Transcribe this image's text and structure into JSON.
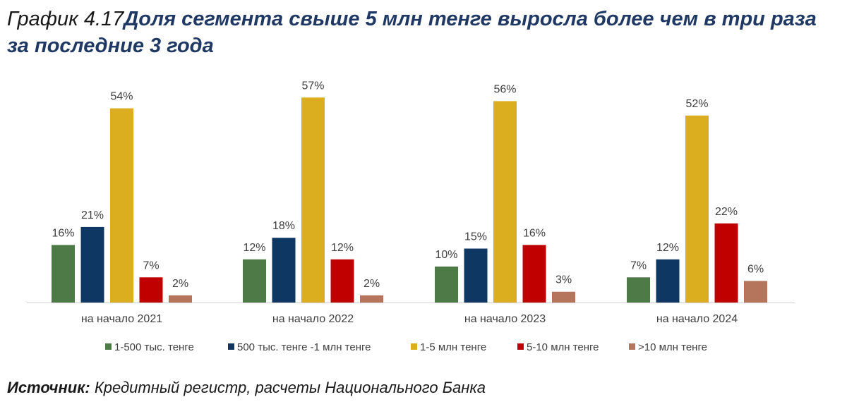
{
  "header": {
    "number": "График 4.17",
    "title": "Доля сегмента свыше 5 млн тенге выросла более чем в три раза за последние 3 года"
  },
  "chart_data": {
    "type": "bar",
    "categories": [
      "на начало 2021",
      "на начало 2022",
      "на начало 2023",
      "на начало 2024"
    ],
    "series": [
      {
        "name": "1-500 тыс. тенге",
        "color": "#4e7a47",
        "values": [
          16,
          12,
          10,
          7
        ],
        "labels": [
          "16%",
          "12%",
          "10%",
          "7%"
        ]
      },
      {
        "name": "500 тыс. тенге -1 млн тенге",
        "color": "#0f3763",
        "values": [
          21,
          18,
          15,
          12
        ],
        "labels": [
          "21%",
          "18%",
          "15%",
          "12%"
        ]
      },
      {
        "name": "1-5 млн тенге",
        "color": "#dbae1f",
        "values": [
          54,
          57,
          56,
          52
        ],
        "labels": [
          "54%",
          "57%",
          "56%",
          "52%"
        ]
      },
      {
        "name": "5-10 млн тенге",
        "color": "#c00000",
        "values": [
          7,
          12,
          16,
          22
        ],
        "labels": [
          "7%",
          "12%",
          "16%",
          "22%"
        ]
      },
      {
        "name": ">10 млн тенге",
        "color": "#b5745c",
        "values": [
          2,
          2,
          3,
          6
        ],
        "labels": [
          "2%",
          "2%",
          "3%",
          "6%"
        ]
      }
    ],
    "ylim": [
      0,
      60
    ],
    "grid": false,
    "legend": "bottom"
  },
  "footer": {
    "source_label": "Источник:",
    "source_text": " Кредитный регистр, расчеты Национального Банка"
  }
}
